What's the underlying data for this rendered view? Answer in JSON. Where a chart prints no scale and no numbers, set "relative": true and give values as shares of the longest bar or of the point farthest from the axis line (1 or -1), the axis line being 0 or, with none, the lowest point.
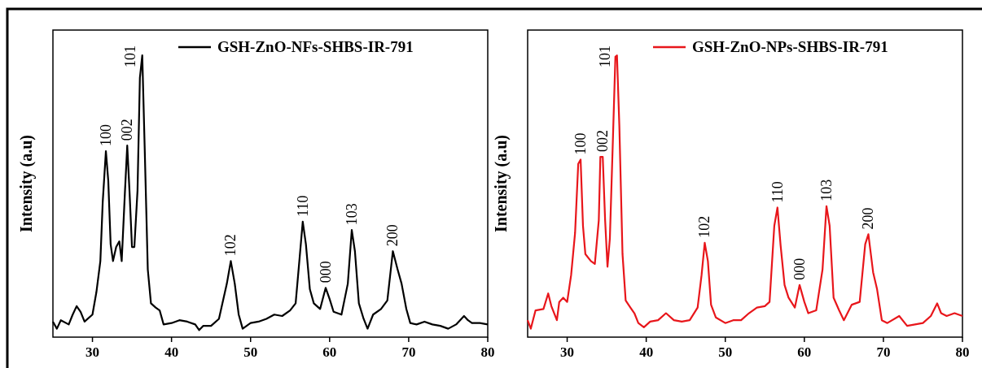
{
  "chart_data": [
    {
      "type": "line",
      "ylabel": "Intensity (a.u)",
      "relative": true,
      "xlim": [
        25,
        80
      ],
      "xticks": [
        30,
        40,
        50,
        60,
        70,
        80
      ],
      "legend": "top right",
      "x": [
        25,
        25.5,
        26,
        27,
        27.5,
        28,
        28.5,
        29,
        30,
        30.5,
        31,
        31.3,
        31.7,
        32,
        32.3,
        32.6,
        33,
        33.4,
        33.7,
        34.1,
        34.4,
        34.7,
        35,
        35.3,
        35.7,
        36,
        36.3,
        36.6,
        37,
        37.4,
        38,
        38.5,
        39,
        40,
        41,
        42,
        43,
        43.5,
        44,
        45,
        46,
        47,
        47.5,
        48,
        48.5,
        49,
        50,
        51,
        52,
        53,
        54,
        55,
        55.7,
        56.2,
        56.6,
        57,
        57.5,
        58,
        58.8,
        59.5,
        60,
        60.5,
        61.5,
        62.3,
        62.8,
        63.2,
        63.7,
        64.3,
        64.8,
        65.5,
        66.5,
        67.3,
        68,
        68.6,
        69.1,
        69.7,
        70.2,
        71,
        72,
        73,
        74,
        75,
        76,
        77,
        77.5,
        78,
        79,
        80
      ],
      "series": [
        {
          "name": "GSH-ZnO-NFs-SHBS-IR-791",
          "color": "#000000",
          "values": [
            0.055,
            0.03,
            0.06,
            0.045,
            0.08,
            0.11,
            0.09,
            0.055,
            0.08,
            0.16,
            0.27,
            0.48,
            0.66,
            0.555,
            0.33,
            0.27,
            0.32,
            0.34,
            0.27,
            0.51,
            0.68,
            0.51,
            0.32,
            0.32,
            0.52,
            0.92,
            1,
            0.68,
            0.24,
            0.12,
            0.105,
            0.095,
            0.045,
            0.05,
            0.06,
            0.055,
            0.045,
            0.025,
            0.04,
            0.04,
            0.065,
            0.19,
            0.27,
            0.19,
            0.08,
            0.03,
            0.05,
            0.055,
            0.065,
            0.08,
            0.075,
            0.095,
            0.12,
            0.28,
            0.41,
            0.33,
            0.17,
            0.12,
            0.1,
            0.175,
            0.135,
            0.09,
            0.08,
            0.19,
            0.38,
            0.305,
            0.12,
            0.065,
            0.03,
            0.08,
            0.1,
            0.13,
            0.305,
            0.24,
            0.19,
            0.1,
            0.05,
            0.045,
            0.055,
            0.045,
            0.04,
            0.03,
            0.045,
            0.075,
            0.06,
            0.05,
            0.05,
            0.045
          ]
        }
      ],
      "annotations": [
        {
          "text": "100",
          "x": 31.7,
          "y": 0.66
        },
        {
          "text": "002",
          "x": 34.4,
          "y": 0.68
        },
        {
          "text": "101",
          "x": 36.3,
          "y": 1
        },
        {
          "text": "102",
          "x": 47.5,
          "y": 0.27
        },
        {
          "text": "110",
          "x": 56.6,
          "y": 0.41
        },
        {
          "text": "000",
          "x": 59.5,
          "y": 0.175
        },
        {
          "text": "103",
          "x": 62.8,
          "y": 0.38
        },
        {
          "text": "200",
          "x": 68,
          "y": 0.305
        }
      ]
    },
    {
      "type": "line",
      "ylabel": "Intensity (a.u)",
      "relative": true,
      "xlim": [
        25,
        80
      ],
      "xticks": [
        30,
        40,
        50,
        60,
        70,
        80
      ],
      "legend": "top right",
      "x": [
        25,
        25.4,
        26,
        27,
        27.6,
        28,
        28.7,
        29,
        29.5,
        30,
        30.5,
        31,
        31.4,
        31.7,
        32,
        32.3,
        33,
        33.5,
        34,
        34.2,
        34.5,
        34.8,
        35.1,
        35.4,
        35.8,
        36.1,
        36.3,
        36.6,
        37,
        37.4,
        38,
        38.5,
        39,
        39.7,
        40.5,
        41.5,
        42.5,
        43.5,
        44.5,
        45.5,
        46.5,
        47,
        47.4,
        47.8,
        48.2,
        48.8,
        50,
        51,
        52,
        53,
        54,
        55,
        55.6,
        56.2,
        56.6,
        57,
        57.5,
        58,
        58.8,
        59.4,
        60,
        60.5,
        61.5,
        62.3,
        62.8,
        63.2,
        63.7,
        64.4,
        65,
        66,
        67,
        67.7,
        68.1,
        68.7,
        69.2,
        69.8,
        70.5,
        72,
        73,
        74,
        75,
        76,
        76.8,
        77.3,
        78,
        79,
        80
      ],
      "series": [
        {
          "name": "GSH-ZnO-NPs-SHBS-IR-791",
          "color": "#e8161b",
          "values": [
            0.06,
            0.03,
            0.095,
            0.1,
            0.155,
            0.11,
            0.06,
            0.125,
            0.14,
            0.125,
            0.22,
            0.37,
            0.615,
            0.63,
            0.395,
            0.295,
            0.27,
            0.26,
            0.415,
            0.64,
            0.64,
            0.415,
            0.25,
            0.35,
            0.715,
            0.995,
            1,
            0.75,
            0.295,
            0.13,
            0.105,
            0.085,
            0.05,
            0.035,
            0.055,
            0.06,
            0.085,
            0.06,
            0.055,
            0.06,
            0.105,
            0.22,
            0.335,
            0.27,
            0.115,
            0.07,
            0.05,
            0.06,
            0.06,
            0.085,
            0.105,
            0.11,
            0.125,
            0.395,
            0.46,
            0.325,
            0.185,
            0.14,
            0.105,
            0.185,
            0.125,
            0.085,
            0.095,
            0.24,
            0.465,
            0.395,
            0.14,
            0.095,
            0.06,
            0.115,
            0.125,
            0.33,
            0.365,
            0.23,
            0.17,
            0.06,
            0.05,
            0.075,
            0.04,
            0.045,
            0.05,
            0.075,
            0.12,
            0.085,
            0.075,
            0.085,
            0.075
          ]
        }
      ],
      "annotations": [
        {
          "text": "100",
          "x": 31.7,
          "y": 0.63
        },
        {
          "text": "002",
          "x": 34.5,
          "y": 0.64
        },
        {
          "text": "101",
          "x": 36.3,
          "y": 1
        },
        {
          "text": "102",
          "x": 47.4,
          "y": 0.335
        },
        {
          "text": "110",
          "x": 56.6,
          "y": 0.46
        },
        {
          "text": "000",
          "x": 59.4,
          "y": 0.185
        },
        {
          "text": "103",
          "x": 62.8,
          "y": 0.465
        },
        {
          "text": "200",
          "x": 68.1,
          "y": 0.365
        }
      ]
    }
  ]
}
